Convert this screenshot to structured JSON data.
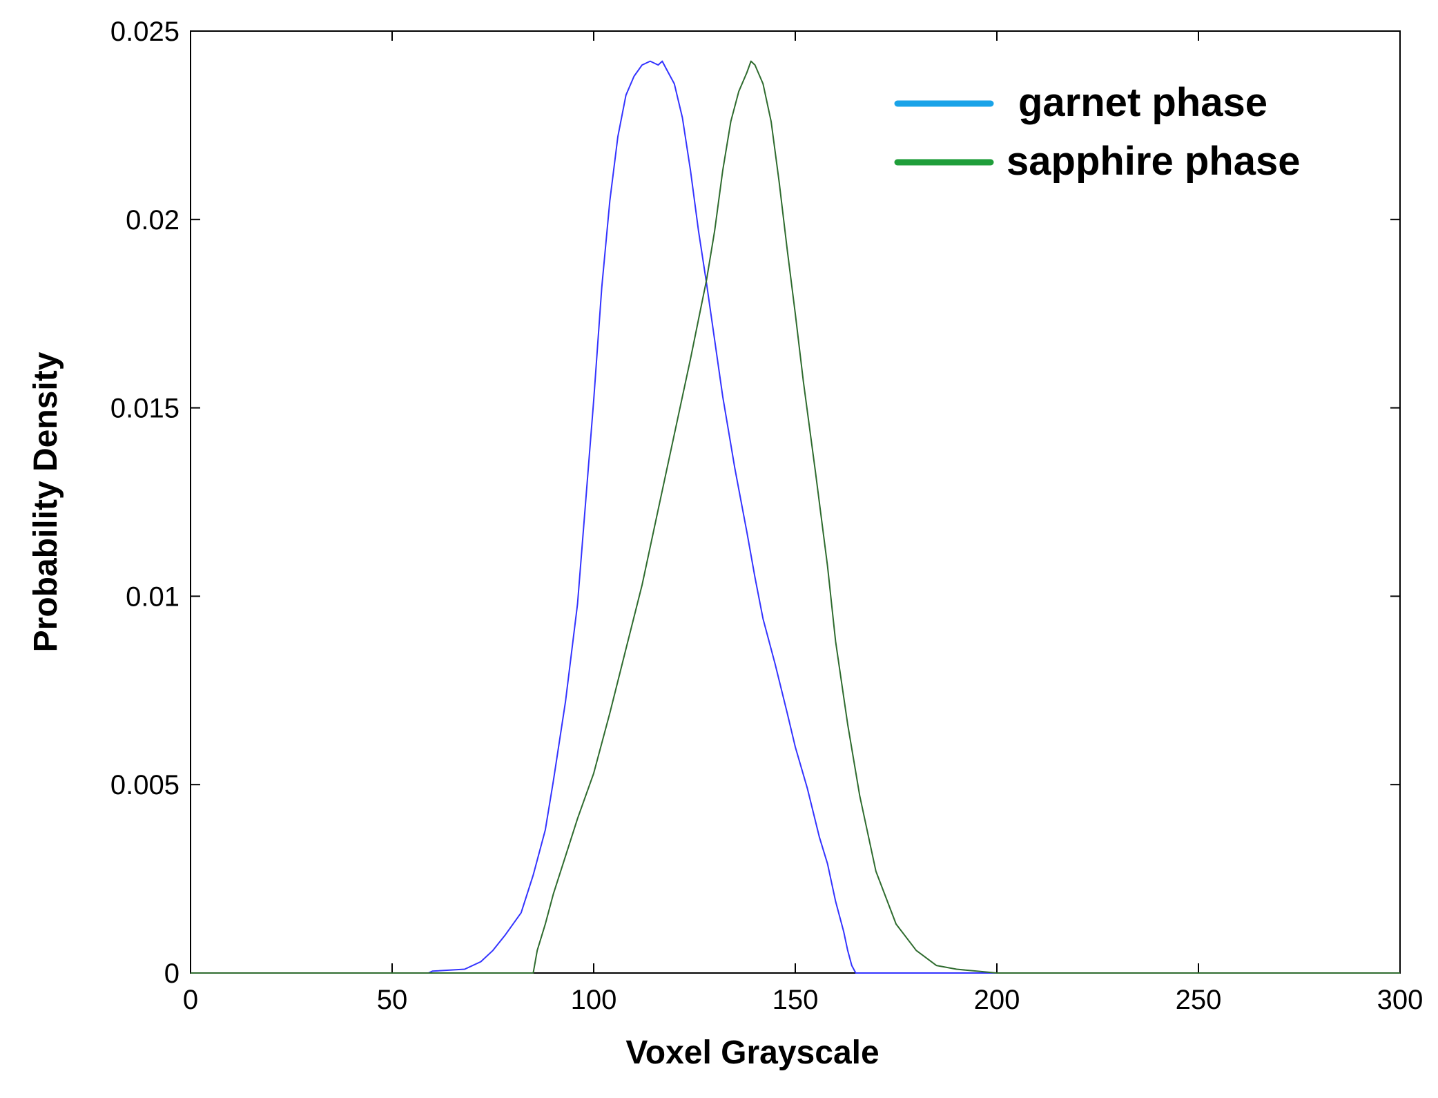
{
  "chart_data": {
    "type": "line",
    "xlabel": "Voxel Grayscale",
    "ylabel": "Probability Density",
    "xlim": [
      0,
      300
    ],
    "ylim": [
      0,
      0.025
    ],
    "xticks": [
      0,
      50,
      100,
      150,
      200,
      250,
      300
    ],
    "yticks": [
      0,
      0.005,
      0.01,
      0.015,
      0.02,
      0.025
    ],
    "xtick_labels": [
      "0",
      "50",
      "100",
      "150",
      "200",
      "250",
      "300"
    ],
    "ytick_labels": [
      "0",
      "0.005",
      "0.01",
      "0.015",
      "0.02",
      "0.025"
    ],
    "grid": false,
    "legend_position": "top-right",
    "series": [
      {
        "name": "garnet phase",
        "color": "#3333ff",
        "legend_color": "#1aa3e8",
        "x": [
          0,
          59,
          60,
          68,
          72,
          75,
          78,
          82,
          85,
          88,
          90,
          93,
          96,
          98,
          100,
          102,
          104,
          106,
          108,
          110,
          112,
          114,
          116,
          117,
          118,
          120,
          122,
          124,
          126,
          128,
          130,
          132,
          135,
          138,
          140,
          142,
          145,
          148,
          150,
          153,
          156,
          158,
          160,
          162,
          163,
          164,
          165,
          200
        ],
        "values": [
          0,
          0,
          5e-05,
          0.0001,
          0.0003,
          0.0006,
          0.001,
          0.0016,
          0.0026,
          0.0038,
          0.0051,
          0.0072,
          0.0098,
          0.0125,
          0.0152,
          0.0182,
          0.0205,
          0.0222,
          0.0233,
          0.0238,
          0.0241,
          0.0242,
          0.0241,
          0.0242,
          0.024,
          0.0236,
          0.0227,
          0.0213,
          0.0197,
          0.0183,
          0.0168,
          0.0153,
          0.0134,
          0.0117,
          0.0105,
          0.0094,
          0.0082,
          0.0069,
          0.006,
          0.0049,
          0.0036,
          0.0029,
          0.0019,
          0.0011,
          0.0006,
          0.0002,
          0,
          0
        ]
      },
      {
        "name": "sapphire phase",
        "color": "#2e6b2e",
        "legend_color": "#1f9e3a",
        "x": [
          0,
          85,
          86,
          88,
          90,
          93,
          96,
          100,
          104,
          108,
          112,
          116,
          120,
          124,
          128,
          130,
          132,
          134,
          136,
          138,
          139,
          140,
          142,
          144,
          146,
          148,
          150,
          152,
          155,
          158,
          160,
          163,
          166,
          170,
          175,
          180,
          185,
          190,
          195,
          200,
          300
        ],
        "values": [
          0,
          0,
          0.0006,
          0.0013,
          0.0021,
          0.0031,
          0.0041,
          0.0053,
          0.0069,
          0.0086,
          0.0103,
          0.0123,
          0.0143,
          0.0163,
          0.0184,
          0.0197,
          0.0213,
          0.0226,
          0.0234,
          0.0239,
          0.0242,
          0.0241,
          0.0236,
          0.0226,
          0.021,
          0.0192,
          0.0175,
          0.0157,
          0.0133,
          0.0108,
          0.0088,
          0.0066,
          0.0047,
          0.0027,
          0.0013,
          0.0006,
          0.0002,
          0.0001,
          5e-05,
          0,
          0
        ]
      }
    ]
  }
}
